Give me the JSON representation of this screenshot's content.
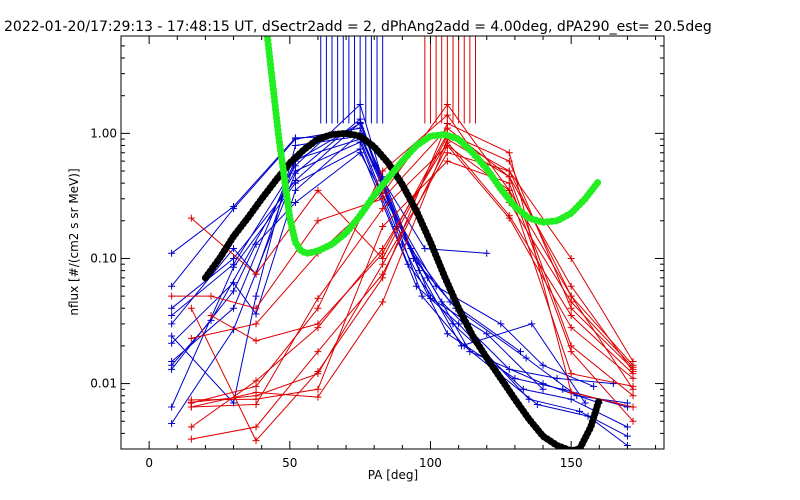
{
  "chart_data": {
    "type": "line",
    "title": "2022-01-20/17:29:13 - 17:48:15 UT, dSectr2add = 2, dPhAng2add = 4.00deg, dPA290_est=  20.5deg",
    "xlabel": "PA [deg]",
    "ylabel": "nflux [#/(cm2 s sr MeV)]",
    "x_scale": "linear",
    "y_scale": "log",
    "xlim": [
      -10,
      183
    ],
    "ylim": [
      0.003,
      6.0
    ],
    "x_ticks": [
      0,
      50,
      100,
      150
    ],
    "x_tick_labels": [
      "0",
      "50",
      "100",
      "150"
    ],
    "y_ticks": [
      0.01,
      0.1,
      1.0
    ],
    "y_tick_labels": [
      "0.01",
      "0.10",
      "1.00"
    ],
    "grid": false,
    "colors": {
      "blue": "#0000cc",
      "red": "#dd0000",
      "black": "#000000",
      "green": "#22ee22"
    },
    "blue_traces": [
      [
        [
          8,
          0.11
        ],
        [
          30,
          0.26
        ],
        [
          52,
          0.92
        ],
        [
          75,
          0.96
        ],
        [
          80,
          0.55
        ],
        [
          98,
          0.12
        ],
        [
          120,
          0.11
        ]
      ],
      [
        [
          8,
          0.06
        ],
        [
          30,
          0.25
        ],
        [
          52,
          0.9
        ],
        [
          75,
          1.1
        ],
        [
          83,
          0.45
        ],
        [
          100,
          0.048
        ],
        [
          120,
          0.025
        ],
        [
          140,
          0.009
        ]
      ],
      [
        [
          8,
          0.04
        ],
        [
          30,
          0.1
        ],
        [
          52,
          0.42
        ],
        [
          75,
          1.22
        ],
        [
          85,
          0.28
        ],
        [
          102,
          0.06
        ],
        [
          125,
          0.03
        ],
        [
          140,
          0.014
        ],
        [
          158,
          0.0095
        ]
      ],
      [
        [
          8,
          0.035
        ],
        [
          30,
          0.09
        ],
        [
          52,
          0.55
        ],
        [
          75,
          1.7
        ],
        [
          88,
          0.18
        ],
        [
          104,
          0.045
        ],
        [
          128,
          0.013
        ],
        [
          145,
          0.011
        ],
        [
          165,
          0.01
        ]
      ],
      [
        [
          8,
          0.015
        ],
        [
          30,
          0.04
        ],
        [
          52,
          0.62
        ],
        [
          75,
          0.9
        ],
        [
          90,
          0.13
        ],
        [
          106,
          0.025
        ],
        [
          130,
          0.011
        ],
        [
          147,
          0.009
        ],
        [
          170,
          0.0065
        ]
      ],
      [
        [
          8,
          0.014
        ],
        [
          22,
          0.032
        ],
        [
          52,
          0.5
        ],
        [
          75,
          0.85
        ],
        [
          92,
          0.09
        ],
        [
          108,
          0.03
        ],
        [
          133,
          0.009
        ],
        [
          150,
          0.0075
        ],
        [
          170,
          0.0045
        ]
      ],
      [
        [
          8,
          0.0065
        ],
        [
          30,
          0.085
        ],
        [
          52,
          0.4
        ],
        [
          75,
          0.75
        ],
        [
          95,
          0.06
        ],
        [
          110,
          0.03
        ],
        [
          135,
          0.0075
        ],
        [
          153,
          0.006
        ],
        [
          170,
          0.0038
        ]
      ],
      [
        [
          8,
          0.0048
        ],
        [
          30,
          0.027
        ],
        [
          52,
          0.48
        ],
        [
          75,
          1.3
        ],
        [
          97,
          0.05
        ],
        [
          112,
          0.02
        ],
        [
          138,
          0.0068
        ],
        [
          156,
          0.0055
        ],
        [
          170,
          0.0032
        ]
      ],
      [
        [
          8,
          0.021
        ],
        [
          30,
          0.064
        ],
        [
          38,
          0.036
        ],
        [
          52,
          0.35
        ],
        [
          75,
          1.0
        ],
        [
          93,
          0.12
        ],
        [
          107,
          0.045
        ],
        [
          132,
          0.018
        ]
      ],
      [
        [
          8,
          0.03
        ],
        [
          30,
          0.12
        ],
        [
          38,
          0.075
        ],
        [
          52,
          0.6
        ],
        [
          75,
          1.2
        ],
        [
          94,
          0.1
        ],
        [
          109,
          0.04
        ],
        [
          134,
          0.016
        ],
        [
          152,
          0.008
        ],
        [
          170,
          0.007
        ]
      ],
      [
        [
          8,
          0.024
        ],
        [
          30,
          0.007
        ],
        [
          38,
          0.05
        ],
        [
          52,
          0.8
        ],
        [
          75,
          0.95
        ],
        [
          96,
          0.08
        ],
        [
          111,
          0.02
        ],
        [
          136,
          0.03
        ],
        [
          155,
          0.007
        ]
      ],
      [
        [
          8,
          0.013
        ],
        [
          30,
          0.055
        ],
        [
          38,
          0.13
        ],
        [
          52,
          0.28
        ],
        [
          75,
          0.7
        ],
        [
          99,
          0.07
        ],
        [
          114,
          0.018
        ],
        [
          140,
          0.01
        ],
        [
          160,
          0.007
        ]
      ]
    ],
    "blue_vertical_x": [
      61,
      63,
      65,
      67,
      69,
      71,
      73,
      75,
      77,
      79,
      81,
      83
    ],
    "red_traces": [
      [
        [
          15,
          0.21
        ],
        [
          38,
          0.075
        ],
        [
          60,
          0.35
        ],
        [
          83,
          0.1
        ],
        [
          106,
          0.95
        ],
        [
          128,
          0.5
        ],
        [
          150,
          0.1
        ],
        [
          172,
          0.015
        ]
      ],
      [
        [
          8,
          0.05
        ],
        [
          22,
          0.05
        ],
        [
          38,
          0.04
        ],
        [
          60,
          0.2
        ],
        [
          83,
          0.3
        ],
        [
          106,
          1.1
        ],
        [
          128,
          0.45
        ],
        [
          150,
          0.06
        ],
        [
          172,
          0.0125
        ]
      ],
      [
        [
          15,
          0.023
        ],
        [
          38,
          0.03
        ],
        [
          60,
          0.11
        ],
        [
          83,
          0.33
        ],
        [
          106,
          1.7
        ],
        [
          128,
          0.35
        ],
        [
          150,
          0.05
        ],
        [
          172,
          0.014
        ]
      ],
      [
        [
          15,
          0.007
        ],
        [
          38,
          0.0095
        ],
        [
          60,
          0.04
        ],
        [
          83,
          0.5
        ],
        [
          106,
          1.4
        ],
        [
          128,
          0.28
        ],
        [
          150,
          0.045
        ],
        [
          172,
          0.0135
        ]
      ],
      [
        [
          15,
          0.0045
        ],
        [
          38,
          0.0105
        ],
        [
          60,
          0.028
        ],
        [
          83,
          0.12
        ],
        [
          106,
          0.85
        ],
        [
          128,
          0.22
        ],
        [
          150,
          0.035
        ],
        [
          172,
          0.012
        ]
      ],
      [
        [
          15,
          0.0036
        ],
        [
          38,
          0.0045
        ],
        [
          60,
          0.018
        ],
        [
          83,
          0.075
        ],
        [
          106,
          0.8
        ],
        [
          128,
          0.21
        ],
        [
          150,
          0.028
        ],
        [
          172,
          0.011
        ]
      ],
      [
        [
          15,
          0.0071
        ],
        [
          38,
          0.008
        ],
        [
          60,
          0.012
        ],
        [
          83,
          0.09
        ],
        [
          106,
          0.7
        ],
        [
          128,
          0.5
        ],
        [
          150,
          0.05
        ],
        [
          172,
          0.009
        ]
      ],
      [
        [
          15,
          0.0065
        ],
        [
          38,
          0.0085
        ],
        [
          60,
          0.0078
        ],
        [
          83,
          0.045
        ],
        [
          106,
          0.9
        ],
        [
          128,
          0.45
        ],
        [
          150,
          0.02
        ],
        [
          172,
          0.008
        ]
      ],
      [
        [
          15,
          0.0074
        ],
        [
          38,
          0.0075
        ],
        [
          60,
          0.009
        ],
        [
          83,
          0.18
        ],
        [
          106,
          0.6
        ],
        [
          128,
          0.4
        ],
        [
          150,
          0.018
        ],
        [
          172,
          0.005
        ]
      ],
      [
        [
          22,
          0.035
        ],
        [
          38,
          0.022
        ],
        [
          60,
          0.03
        ],
        [
          83,
          0.11
        ],
        [
          106,
          1.0
        ],
        [
          128,
          0.6
        ],
        [
          150,
          0.04
        ],
        [
          172,
          0.013
        ]
      ],
      [
        [
          15,
          0.0065
        ],
        [
          38,
          0.0068
        ],
        [
          60,
          0.048
        ],
        [
          83,
          0.25
        ],
        [
          106,
          0.8
        ],
        [
          128,
          0.35
        ],
        [
          150,
          0.012
        ],
        [
          172,
          0.0095
        ]
      ],
      [
        [
          15,
          0.04
        ],
        [
          38,
          0.0035
        ],
        [
          60,
          0.0125
        ],
        [
          83,
          0.07
        ],
        [
          106,
          1.2
        ],
        [
          128,
          0.7
        ],
        [
          150,
          0.0085
        ],
        [
          172,
          0.0065
        ]
      ]
    ],
    "red_vertical_x": [
      98,
      100,
      102,
      104,
      106,
      108,
      110,
      112,
      114,
      116
    ],
    "series": [
      {
        "color": "black",
        "x": [
          20,
          25,
          30,
          35,
          40,
          45,
          50,
          55,
          60,
          65,
          70,
          75,
          80,
          85,
          90,
          95,
          100,
          105,
          110,
          115,
          120,
          125,
          130,
          135,
          140,
          145,
          150,
          153,
          157,
          160
        ],
        "values": [
          0.07,
          0.1,
          0.15,
          0.21,
          0.3,
          0.42,
          0.58,
          0.74,
          0.9,
          0.98,
          1.0,
          0.95,
          0.78,
          0.58,
          0.39,
          0.24,
          0.135,
          0.072,
          0.04,
          0.024,
          0.016,
          0.011,
          0.0075,
          0.0052,
          0.0038,
          0.0032,
          0.0029,
          0.003,
          0.0045,
          0.0075
        ]
      },
      {
        "color": "green",
        "x": [
          42,
          44,
          46,
          48,
          50,
          52,
          54,
          56,
          58,
          60,
          65,
          70,
          75,
          80,
          85,
          90,
          95,
          100,
          105,
          110,
          115,
          120,
          125,
          130,
          135,
          140,
          145,
          150,
          155,
          160
        ],
        "values": [
          6.0,
          2.4,
          0.95,
          0.45,
          0.21,
          0.135,
          0.115,
          0.11,
          0.112,
          0.115,
          0.13,
          0.16,
          0.22,
          0.32,
          0.44,
          0.6,
          0.8,
          0.95,
          0.98,
          0.9,
          0.7,
          0.52,
          0.36,
          0.26,
          0.21,
          0.195,
          0.2,
          0.23,
          0.3,
          0.42
        ]
      }
    ]
  }
}
